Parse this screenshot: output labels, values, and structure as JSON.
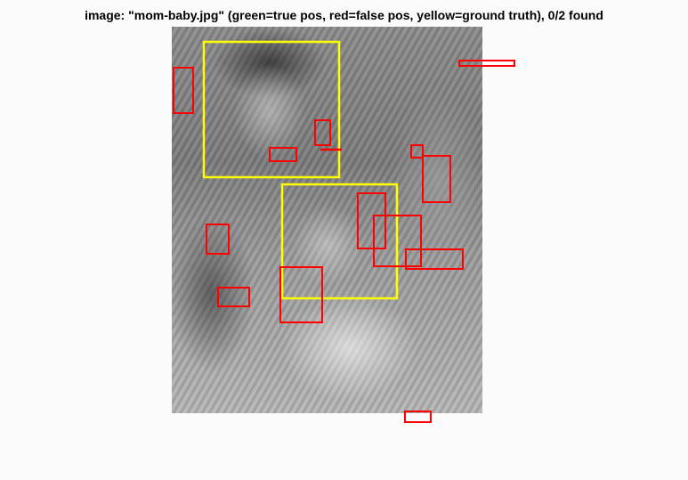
{
  "figure": {
    "title": "image: \"mom-baby.jpg\" (green=true pos, red=false pos, yellow=ground truth), 0/2 found"
  },
  "colors": {
    "ground_truth": "#ffff00",
    "false_positive": "#ff0000",
    "true_positive": "#00ff00",
    "background": "#fbfbfb"
  },
  "detection_summary": {
    "ground_truth_boxes": 2,
    "false_positive_boxes": 15,
    "true_positive_boxes": 0
  }
}
